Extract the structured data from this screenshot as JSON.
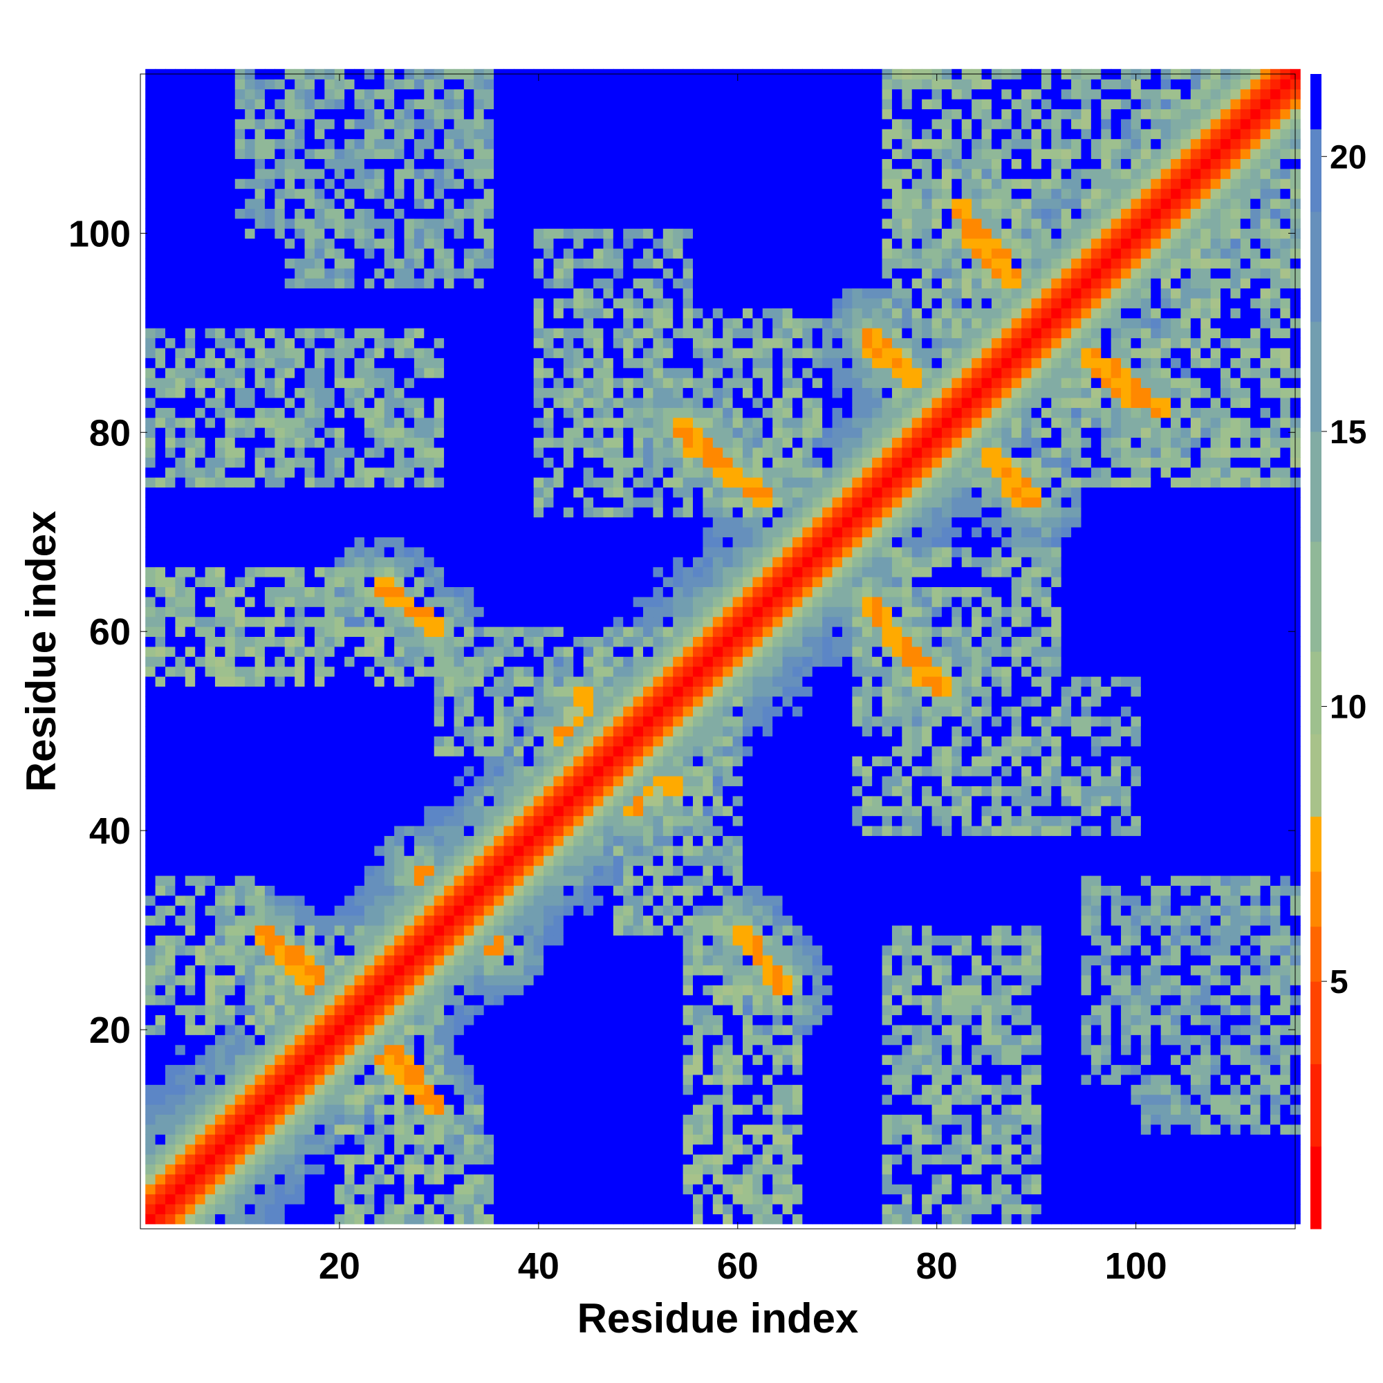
{
  "chart_data": {
    "type": "heatmap",
    "title": "",
    "xlabel": "Residue index",
    "ylabel": "Residue index",
    "n_residues": 116,
    "xlim": [
      1,
      116
    ],
    "ylim": [
      1,
      116
    ],
    "x_ticks": [
      20,
      40,
      60,
      80,
      100
    ],
    "y_ticks": [
      20,
      40,
      60,
      80,
      100
    ],
    "colorbar": {
      "range": [
        0.5,
        21.5
      ],
      "ticks": [
        5,
        10,
        15,
        20
      ],
      "bands": [
        {
          "from": 0.5,
          "to": 2.0,
          "color": "#ff0000"
        },
        {
          "from": 2.0,
          "to": 3.5,
          "color": "#ff2200"
        },
        {
          "from": 3.5,
          "to": 5.0,
          "color": "#ff4400"
        },
        {
          "from": 5.0,
          "to": 6.0,
          "color": "#ff6600"
        },
        {
          "from": 6.0,
          "to": 7.0,
          "color": "#ff8800"
        },
        {
          "from": 7.0,
          "to": 8.0,
          "color": "#ffaa00"
        },
        {
          "from": 8.0,
          "to": 9.5,
          "color": "#a8c28a"
        },
        {
          "from": 9.5,
          "to": 11.0,
          "color": "#9ec08e"
        },
        {
          "from": 11.0,
          "to": 13.0,
          "color": "#90b898"
        },
        {
          "from": 13.0,
          "to": 15.0,
          "color": "#82aca4"
        },
        {
          "from": 15.0,
          "to": 17.0,
          "color": "#729eb0"
        },
        {
          "from": 17.0,
          "to": 19.0,
          "color": "#6690bc"
        },
        {
          "from": 19.0,
          "to": 20.5,
          "color": "#5c86c6"
        },
        {
          "from": 20.5,
          "to": 21.5,
          "color": "#0000ff"
        }
      ]
    },
    "matrix": {
      "kind": "symmetric pairwise distance map",
      "diagonal_value": 1.5,
      "near_diagonal_offsets": [
        [
          1,
          2.5
        ],
        [
          2,
          4.5
        ],
        [
          3,
          6.5
        ],
        [
          4,
          9.0
        ],
        [
          5,
          11.5
        ],
        [
          6,
          13.5
        ]
      ],
      "background_value": 21.0,
      "contact_segments": [
        {
          "from": [
            12,
            30
          ],
          "to": [
            21,
            23
          ],
          "value": 6.5
        },
        {
          "from": [
            23,
            19
          ],
          "to": [
            30,
            12
          ],
          "value": 6.5
        },
        {
          "from": [
            3,
            2
          ],
          "to": [
            12,
            10
          ],
          "value": 6.0
        },
        {
          "from": [
            30,
            33
          ],
          "to": [
            36,
            28
          ],
          "value": 6.0
        },
        {
          "from": [
            43,
            46
          ],
          "to": [
            50,
            42
          ],
          "value": 6.5
        },
        {
          "from": [
            41,
            37
          ],
          "to": [
            48,
            45
          ],
          "value": 6.0
        },
        {
          "from": [
            24,
            65
          ],
          "to": [
            30,
            60
          ],
          "value": 6.5
        },
        {
          "from": [
            54,
            81
          ],
          "to": [
            63,
            73
          ],
          "value": 6.5
        },
        {
          "from": [
            60,
            30
          ],
          "to": [
            65,
            24
          ],
          "value": 6.5
        },
        {
          "from": [
            73,
            63
          ],
          "to": [
            79,
            55
          ],
          "value": 6.5
        },
        {
          "from": [
            73,
            90
          ],
          "to": [
            81,
            82
          ],
          "value": 6.5
        },
        {
          "from": [
            83,
            80
          ],
          "to": [
            89,
            73
          ],
          "value": 6.5
        },
        {
          "from": [
            82,
            103
          ],
          "to": [
            90,
            93
          ],
          "value": 6.5
        },
        {
          "from": [
            92,
            90
          ],
          "to": [
            100,
            83
          ],
          "value": 6.5
        },
        {
          "from": [
            98,
            103
          ],
          "to": [
            104,
            99
          ],
          "value": 6.0
        },
        {
          "from": [
            104,
            104
          ],
          "to": [
            113,
            112
          ],
          "value": 6.0
        },
        {
          "from": [
            43,
            50
          ],
          "to": [
            45,
            54
          ],
          "value": 7.0
        }
      ],
      "near_contact_regions": [
        {
          "x": [
            1,
            12
          ],
          "y": [
            20,
            35
          ],
          "value": 13.0
        },
        {
          "x": [
            1,
            25
          ],
          "y": [
            55,
            66
          ],
          "value": 12.0
        },
        {
          "x": [
            1,
            30
          ],
          "y": [
            75,
            90
          ],
          "value": 13.5
        },
        {
          "x": [
            15,
            35
          ],
          "y": [
            95,
            116
          ],
          "value": 14.5
        },
        {
          "x": [
            40,
            55
          ],
          "y": [
            85,
            100
          ],
          "value": 14.0
        },
        {
          "x": [
            55,
            65
          ],
          "y": [
            1,
            30
          ],
          "value": 13.0
        },
        {
          "x": [
            78,
            116
          ],
          "y": [
            75,
            116
          ],
          "value": 12.5
        },
        {
          "x": [
            72,
            92
          ],
          "y": [
            40,
            68
          ],
          "value": 13.0
        },
        {
          "x": [
            100,
            116
          ],
          "y": [
            10,
            30
          ],
          "value": 14.5
        },
        {
          "x": [
            20,
            30
          ],
          "y": [
            5,
            22
          ],
          "value": 12.0
        },
        {
          "x": [
            48,
            60
          ],
          "y": [
            30,
            55
          ],
          "value": 13.0
        }
      ]
    }
  }
}
